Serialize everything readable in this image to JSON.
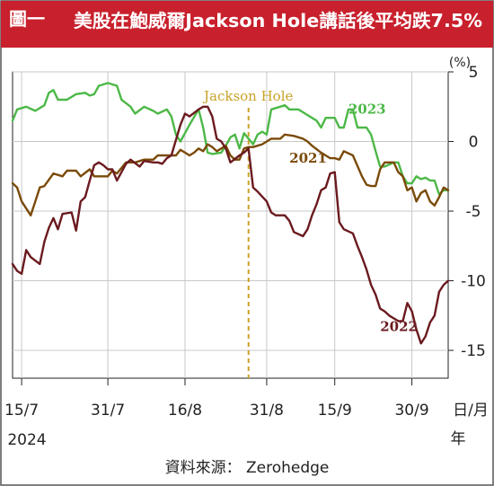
{
  "figure": {
    "badge": "圖一",
    "title": "美股在鮑威爾Jackson Hole講話後平均跌7.5%",
    "unit": "(%)",
    "source": "資料來源： Zerohedge",
    "colors": {
      "header_bg": "#c8202c",
      "badge_bg": "#c8202c"
    }
  },
  "chart_data": {
    "type": "line",
    "title": "美股在鮑威爾Jackson Hole講話後平均跌7.5%",
    "xlabel": "日/月 年",
    "ylabel": "(%)",
    "ylim": [
      -17,
      5
    ],
    "y_ticks": [
      5,
      0,
      -5,
      -10,
      -15
    ],
    "x_range": [
      1,
      97
    ],
    "x_ticks": [
      {
        "x": 3,
        "label": "15/7"
      },
      {
        "x": 22,
        "label": "31/7"
      },
      {
        "x": 39,
        "label": "16/8"
      },
      {
        "x": 57,
        "label": "31/8"
      },
      {
        "x": 72,
        "label": "15/9"
      },
      {
        "x": 89,
        "label": "30/9"
      }
    ],
    "year_label": "2024",
    "x_axis_unit": "日/月",
    "x_axis_unit2": "年",
    "grid": true,
    "annotation": {
      "text": "Jackson Hole",
      "x": 53,
      "color": "#c9a227"
    },
    "series": [
      {
        "name": "2023",
        "color": "#4db848",
        "label_pos": {
          "x": 75,
          "y": 2
        },
        "points": [
          [
            1,
            1.5
          ],
          [
            2,
            2.3
          ],
          [
            4,
            2.5
          ],
          [
            6,
            2.2
          ],
          [
            8,
            2.6
          ],
          [
            9,
            3.5
          ],
          [
            10,
            3.7
          ],
          [
            11,
            3.0
          ],
          [
            13,
            3.0
          ],
          [
            15,
            3.4
          ],
          [
            17,
            3.5
          ],
          [
            18,
            3.3
          ],
          [
            19,
            3.4
          ],
          [
            20,
            4.0
          ],
          [
            22,
            4.2
          ],
          [
            24,
            4.0
          ],
          [
            25,
            3.0
          ],
          [
            27,
            2.5
          ],
          [
            28,
            2.0
          ],
          [
            30,
            2.5
          ],
          [
            32,
            2.2
          ],
          [
            33,
            2.0
          ],
          [
            35,
            2.3
          ],
          [
            36,
            1.8
          ],
          [
            37,
            0.5
          ],
          [
            38,
            0.0
          ],
          [
            40,
            1.2
          ],
          [
            42,
            2.3
          ],
          [
            43,
            1.0
          ],
          [
            44,
            -0.8
          ],
          [
            45,
            -0.9
          ],
          [
            47,
            -0.8
          ],
          [
            48,
            -0.3
          ],
          [
            49,
            0.3
          ],
          [
            50,
            0.5
          ],
          [
            51,
            -0.5
          ],
          [
            52,
            0.6
          ],
          [
            53,
            0.2
          ],
          [
            54,
            -0.2
          ],
          [
            55,
            0.5
          ],
          [
            56,
            0.7
          ],
          [
            57,
            0.5
          ],
          [
            58,
            2.3
          ],
          [
            59,
            2.4
          ],
          [
            61,
            2.6
          ],
          [
            62,
            2.3
          ],
          [
            64,
            2.3
          ],
          [
            66,
            1.9
          ],
          [
            68,
            1.5
          ],
          [
            69,
            1.0
          ],
          [
            70,
            1.7
          ],
          [
            72,
            1.7
          ],
          [
            73,
            1.0
          ],
          [
            74,
            1.0
          ],
          [
            75,
            2.3
          ],
          [
            76,
            2.3
          ],
          [
            77,
            1.0
          ],
          [
            79,
            1.0
          ],
          [
            80,
            0.5
          ],
          [
            81,
            -0.7
          ],
          [
            82,
            -1.8
          ],
          [
            83,
            -1.8
          ],
          [
            85,
            -1.5
          ],
          [
            86,
            -1.5
          ],
          [
            87,
            -2.5
          ],
          [
            88,
            -3.0
          ],
          [
            89,
            -3.0
          ],
          [
            90,
            -2.5
          ],
          [
            91,
            -2.7
          ],
          [
            92,
            -2.6
          ],
          [
            93,
            -2.8
          ],
          [
            94,
            -2.8
          ],
          [
            95,
            -3.8
          ],
          [
            96,
            -3.5
          ],
          [
            97,
            -3.5
          ]
        ]
      },
      {
        "name": "2021",
        "color": "#7a4a08",
        "label_pos": {
          "x": 62,
          "y": -1.5
        },
        "points": [
          [
            1,
            -3.0
          ],
          [
            2,
            -3.3
          ],
          [
            3,
            -4.3
          ],
          [
            5,
            -5.3
          ],
          [
            6,
            -4.3
          ],
          [
            7,
            -3.3
          ],
          [
            8,
            -3.2
          ],
          [
            10,
            -2.3
          ],
          [
            12,
            -2.5
          ],
          [
            13,
            -2.1
          ],
          [
            15,
            -2.1
          ],
          [
            16,
            -2.5
          ],
          [
            18,
            -2.0
          ],
          [
            19,
            -2.5
          ],
          [
            20,
            -2.5
          ],
          [
            22,
            -2.5
          ],
          [
            23,
            -2.1
          ],
          [
            24,
            -2.3
          ],
          [
            26,
            -1.5
          ],
          [
            28,
            -1.5
          ],
          [
            30,
            -1.3
          ],
          [
            32,
            -1.3
          ],
          [
            33,
            -1.0
          ],
          [
            35,
            -1.0
          ],
          [
            37,
            -1.0
          ],
          [
            38,
            -0.6
          ],
          [
            39,
            -0.8
          ],
          [
            40,
            -1.0
          ],
          [
            41,
            -0.8
          ],
          [
            42,
            -0.5
          ],
          [
            43,
            -0.7
          ],
          [
            44,
            -0.2
          ],
          [
            45,
            -0.4
          ],
          [
            46,
            -0.7
          ],
          [
            47,
            -0.5
          ],
          [
            48,
            -0.3
          ],
          [
            49,
            -1.0
          ],
          [
            50,
            -1.3
          ],
          [
            51,
            -1.3
          ],
          [
            52,
            -0.5
          ],
          [
            53,
            -0.4
          ],
          [
            54,
            -0.4
          ],
          [
            56,
            -0.2
          ],
          [
            57,
            0.0
          ],
          [
            58,
            0.2
          ],
          [
            60,
            0.2
          ],
          [
            61,
            0.5
          ],
          [
            63,
            0.4
          ],
          [
            65,
            0.2
          ],
          [
            66,
            0.0
          ],
          [
            67,
            -0.3
          ],
          [
            69,
            -0.8
          ],
          [
            71,
            -1.2
          ],
          [
            72,
            -1.2
          ],
          [
            73,
            -1.3
          ],
          [
            74,
            -0.7
          ],
          [
            76,
            -1.0
          ],
          [
            78,
            -2.5
          ],
          [
            79,
            -3.1
          ],
          [
            80,
            -3.2
          ],
          [
            81,
            -3.2
          ],
          [
            82,
            -2.0
          ],
          [
            83,
            -1.5
          ],
          [
            85,
            -1.5
          ],
          [
            86,
            -2.2
          ],
          [
            87,
            -2.5
          ],
          [
            88,
            -3.5
          ],
          [
            89,
            -3.3
          ],
          [
            90,
            -4.3
          ],
          [
            91,
            -3.7
          ],
          [
            92,
            -3.5
          ],
          [
            93,
            -4.3
          ],
          [
            94,
            -4.6
          ],
          [
            95,
            -4.0
          ],
          [
            96,
            -3.3
          ],
          [
            97,
            -3.5
          ]
        ]
      },
      {
        "name": "2022",
        "color": "#6b1a1f",
        "label_pos": {
          "x": 82,
          "y": -13.6
        },
        "points": [
          [
            1,
            -8.8
          ],
          [
            2,
            -9.3
          ],
          [
            3,
            -9.5
          ],
          [
            4,
            -7.8
          ],
          [
            5,
            -8.3
          ],
          [
            7,
            -8.8
          ],
          [
            8,
            -7.2
          ],
          [
            9,
            -6.2
          ],
          [
            10,
            -5.5
          ],
          [
            11,
            -6.3
          ],
          [
            12,
            -5.2
          ],
          [
            14,
            -5.1
          ],
          [
            15,
            -6.4
          ],
          [
            16,
            -4.3
          ],
          [
            17,
            -4.0
          ],
          [
            18,
            -2.8
          ],
          [
            19,
            -1.7
          ],
          [
            20,
            -1.5
          ],
          [
            21,
            -1.7
          ],
          [
            22,
            -2.0
          ],
          [
            23,
            -2.0
          ],
          [
            24,
            -2.8
          ],
          [
            25,
            -2.2
          ],
          [
            26,
            -1.6
          ],
          [
            27,
            -1.3
          ],
          [
            29,
            -1.8
          ],
          [
            30,
            -1.4
          ],
          [
            32,
            -1.5
          ],
          [
            33,
            -1.5
          ],
          [
            34,
            -1.6
          ],
          [
            35,
            -1.2
          ],
          [
            36,
            -1.0
          ],
          [
            38,
            1.2
          ],
          [
            39,
            2.0
          ],
          [
            40,
            1.8
          ],
          [
            42,
            2.3
          ],
          [
            43,
            2.5
          ],
          [
            44,
            2.5
          ],
          [
            45,
            1.8
          ],
          [
            46,
            0.2
          ],
          [
            47,
            0.0
          ],
          [
            48,
            -0.5
          ],
          [
            49,
            -1.5
          ],
          [
            51,
            -1.0
          ],
          [
            52,
            -0.8
          ],
          [
            53,
            -0.5
          ],
          [
            54,
            -3.3
          ],
          [
            55,
            -3.6
          ],
          [
            57,
            -4.3
          ],
          [
            58,
            -5.1
          ],
          [
            59,
            -5.3
          ],
          [
            61,
            -5.3
          ],
          [
            62,
            -5.7
          ],
          [
            63,
            -6.5
          ],
          [
            65,
            -6.8
          ],
          [
            66,
            -6.3
          ],
          [
            67,
            -5.3
          ],
          [
            68,
            -4.5
          ],
          [
            69,
            -3.5
          ],
          [
            70,
            -3.3
          ],
          [
            71,
            -2.3
          ],
          [
            72,
            -2.2
          ],
          [
            73,
            -5.8
          ],
          [
            74,
            -6.3
          ],
          [
            76,
            -6.6
          ],
          [
            77,
            -7.5
          ],
          [
            78,
            -8.3
          ],
          [
            79,
            -9.2
          ],
          [
            80,
            -10.3
          ],
          [
            81,
            -11.0
          ],
          [
            82,
            -12.0
          ],
          [
            83,
            -12.2
          ],
          [
            84,
            -12.5
          ],
          [
            86,
            -12.9
          ],
          [
            87,
            -12.9
          ],
          [
            88,
            -11.6
          ],
          [
            89,
            -12.2
          ],
          [
            90,
            -13.5
          ],
          [
            91,
            -14.5
          ],
          [
            92,
            -14.0
          ],
          [
            93,
            -13.0
          ],
          [
            94,
            -12.5
          ],
          [
            95,
            -10.8
          ],
          [
            96,
            -10.3
          ],
          [
            97,
            -10.0
          ]
        ]
      }
    ]
  }
}
